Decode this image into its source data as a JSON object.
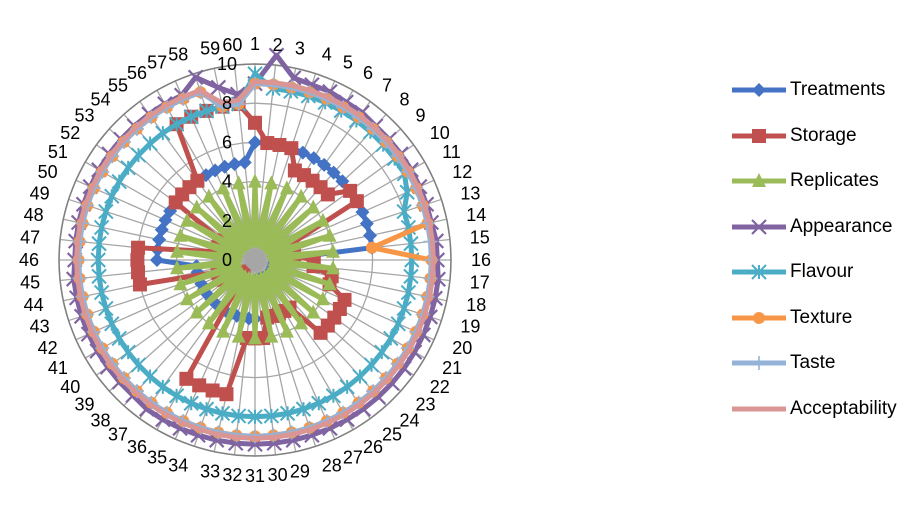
{
  "chart_data": {
    "type": "radar",
    "categories": [
      "1",
      "2",
      "3",
      "4",
      "5",
      "6",
      "7",
      "8",
      "9",
      "10",
      "11",
      "12",
      "13",
      "14",
      "15",
      "16",
      "17",
      "18",
      "19",
      "20",
      "21",
      "22",
      "23",
      "24",
      "25",
      "26",
      "27",
      "28",
      "29",
      "30",
      "31",
      "32",
      "33",
      "34",
      "35",
      "36",
      "37",
      "38",
      "39",
      "40",
      "41",
      "42",
      "43",
      "44",
      "45",
      "46",
      "47",
      "48",
      "49",
      "50",
      "51",
      "52",
      "53",
      "54",
      "55",
      "56",
      "57",
      "58",
      "59",
      "60"
    ],
    "radial_ticks": [
      0,
      2,
      4,
      6,
      8,
      10
    ],
    "ylim": [
      0,
      10
    ],
    "grid": true,
    "legend_position": "right",
    "series": [
      {
        "name": "Treatments",
        "color": "#4472C4",
        "marker": "diamond",
        "values": [
          6,
          6,
          6,
          6,
          6,
          6,
          6,
          6,
          6,
          6,
          6,
          6,
          6,
          6,
          6,
          1,
          1,
          1,
          1,
          1,
          1,
          1,
          1,
          1,
          1,
          1,
          1,
          1,
          1,
          1,
          3,
          3,
          3,
          3,
          3,
          3,
          3,
          3,
          3,
          3,
          3,
          3,
          3,
          3,
          3,
          5,
          5,
          5,
          5,
          5,
          5,
          5,
          5,
          5,
          5,
          5,
          5,
          5,
          5,
          5
        ]
      },
      {
        "name": "Storage",
        "color": "#C0504D",
        "marker": "square",
        "values": [
          7,
          6,
          6,
          6,
          5,
          5,
          5,
          5,
          5,
          6,
          6,
          2,
          2,
          2,
          2,
          3,
          3,
          4,
          4,
          5,
          5,
          5,
          5,
          5,
          3,
          3,
          3,
          3,
          3,
          4,
          4,
          4,
          7,
          7,
          7,
          7,
          1,
          1,
          1,
          1,
          2,
          2,
          2,
          6,
          6,
          6,
          6,
          2,
          2,
          2,
          2,
          5,
          5,
          5,
          5,
          8,
          8,
          8,
          8,
          8
        ]
      },
      {
        "name": "Replicates",
        "color": "#9BBB59",
        "marker": "triangle",
        "values": [
          4,
          1,
          4,
          1,
          4,
          1,
          4,
          1,
          4,
          1,
          4,
          1,
          4,
          1,
          4,
          1,
          4,
          1,
          4,
          1,
          4,
          1,
          4,
          1,
          4,
          1,
          4,
          1,
          4,
          1,
          4,
          1,
          4,
          1,
          4,
          1,
          4,
          1,
          4,
          1,
          4,
          1,
          4,
          1,
          4,
          1,
          4,
          1,
          4,
          1,
          4,
          1,
          4,
          1,
          4,
          1,
          4,
          1,
          4,
          1
        ]
      },
      {
        "name": "Appearance",
        "color": "#8064A2",
        "marker": "x",
        "values": [
          9,
          10.5,
          9.5,
          9.4,
          9.4,
          9.3,
          9.3,
          9.2,
          9.2,
          9.2,
          9.2,
          9.2,
          9.2,
          9.2,
          9.3,
          9.3,
          9.4,
          9.4,
          9.4,
          9.4,
          9.4,
          9.4,
          9.4,
          9.4,
          9.4,
          9.4,
          9.4,
          9.4,
          9.4,
          9.4,
          9.4,
          9.4,
          9.4,
          9.4,
          9.4,
          9.4,
          9.4,
          9.3,
          9.3,
          9.3,
          9.3,
          9.3,
          9.3,
          9.3,
          9.3,
          9.2,
          9.2,
          9.2,
          9.2,
          9.2,
          9.2,
          9.2,
          9.2,
          9.2,
          9.2,
          9.2,
          9.2,
          9.8,
          9,
          8.5
        ]
      },
      {
        "name": "Flavour",
        "color": "#4BACC6",
        "marker": "star",
        "values": [
          9.5,
          8.8,
          8.8,
          8.8,
          8.8,
          8.8,
          8.8,
          8.8,
          8.8,
          8.8,
          8.8,
          8.5,
          8,
          8,
          8,
          8,
          8,
          8,
          8,
          8,
          8,
          8,
          8,
          8,
          8,
          8,
          8,
          8,
          8,
          8,
          8,
          8,
          8,
          8,
          8,
          8,
          8,
          8,
          8,
          8,
          8,
          8,
          8,
          8,
          8,
          8,
          8,
          8,
          8,
          8,
          8,
          8,
          8,
          8,
          8,
          8,
          8,
          8,
          8,
          8
        ]
      },
      {
        "name": "Texture",
        "color": "#F79646",
        "marker": "circle",
        "values": [
          9,
          9,
          9,
          9,
          9,
          9,
          9,
          9,
          9,
          9,
          9,
          9,
          9,
          9,
          6,
          9,
          9,
          9,
          9,
          9,
          9,
          9,
          9,
          9,
          9,
          9,
          9,
          9,
          9,
          9,
          9,
          9,
          9,
          9,
          9,
          9,
          9,
          9,
          9,
          9,
          9,
          9,
          9,
          9,
          9,
          9,
          9,
          9,
          9,
          9,
          9,
          9,
          9,
          9,
          9,
          9,
          9,
          9,
          8,
          8
        ]
      },
      {
        "name": "Taste",
        "color": "#95B3D7",
        "marker": "plus",
        "values": [
          9,
          9,
          9,
          9,
          9,
          9,
          9,
          9,
          9,
          9,
          9,
          9,
          9,
          9,
          9,
          9,
          9,
          9,
          9,
          9,
          9,
          9,
          9,
          9,
          9,
          9,
          9,
          9,
          9,
          9,
          9,
          9,
          9,
          9,
          9,
          9,
          9,
          9,
          9,
          9,
          9,
          9,
          9,
          9,
          9,
          9,
          9,
          9,
          9,
          9,
          9,
          9,
          9,
          9,
          9,
          9,
          9,
          9,
          8,
          8
        ]
      },
      {
        "name": "Acceptability",
        "color": "#D99694",
        "marker": "none",
        "values": [
          9.1,
          9.1,
          9.1,
          9.1,
          9.1,
          9.1,
          9.1,
          9.1,
          9.1,
          9.1,
          9.1,
          9.1,
          9.1,
          9.1,
          9.1,
          9.1,
          9.1,
          9.1,
          9.1,
          9.1,
          9.1,
          9.1,
          9.1,
          9.1,
          9.1,
          9.1,
          9.1,
          9.1,
          9.1,
          9.1,
          9.1,
          9.1,
          9.1,
          9.1,
          9.1,
          9.1,
          9.1,
          9.1,
          9.1,
          9.1,
          9.1,
          9.1,
          9.1,
          9.1,
          9.1,
          9.1,
          9.1,
          9.1,
          9.1,
          9.1,
          9.1,
          9.1,
          9.1,
          9.1,
          9.1,
          9.1,
          9.1,
          9.1,
          8.2,
          8.2
        ]
      }
    ]
  }
}
